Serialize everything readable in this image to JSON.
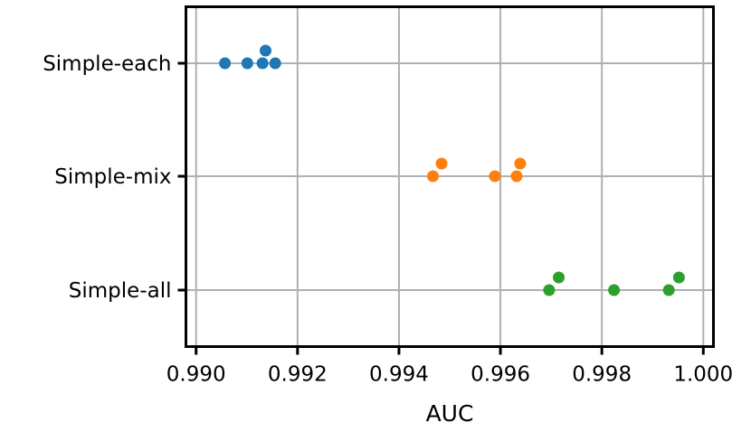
{
  "chart_data": {
    "type": "scatter",
    "title": "",
    "xlabel": "AUC",
    "ylabel": "",
    "xlim": [
      0.9898,
      1.0002
    ],
    "grid": true,
    "x_ticks": [
      "0.990",
      "0.992",
      "0.994",
      "0.996",
      "0.998",
      "1.000"
    ],
    "categories": [
      "Simple-each",
      "Simple-mix",
      "Simple-all"
    ],
    "series": [
      {
        "category": "Simple-each",
        "color": "#1f77b4",
        "points": [
          {
            "x": 0.99057,
            "jitter": 0
          },
          {
            "x": 0.99101,
            "jitter": 0
          },
          {
            "x": 0.99131,
            "jitter": 0
          },
          {
            "x": 0.99137,
            "jitter": 1
          },
          {
            "x": 0.99156,
            "jitter": 0
          }
        ]
      },
      {
        "category": "Simple-mix",
        "color": "#ff7f0e",
        "points": [
          {
            "x": 0.99467,
            "jitter": 0
          },
          {
            "x": 0.99484,
            "jitter": 1
          },
          {
            "x": 0.99589,
            "jitter": 0
          },
          {
            "x": 0.99632,
            "jitter": 0
          },
          {
            "x": 0.99639,
            "jitter": 1
          }
        ]
      },
      {
        "category": "Simple-all",
        "color": "#2ca02c",
        "points": [
          {
            "x": 0.99696,
            "jitter": 0
          },
          {
            "x": 0.99715,
            "jitter": 1
          },
          {
            "x": 0.99824,
            "jitter": 0
          },
          {
            "x": 0.99932,
            "jitter": 0
          },
          {
            "x": 0.99952,
            "jitter": 1
          }
        ]
      }
    ]
  }
}
